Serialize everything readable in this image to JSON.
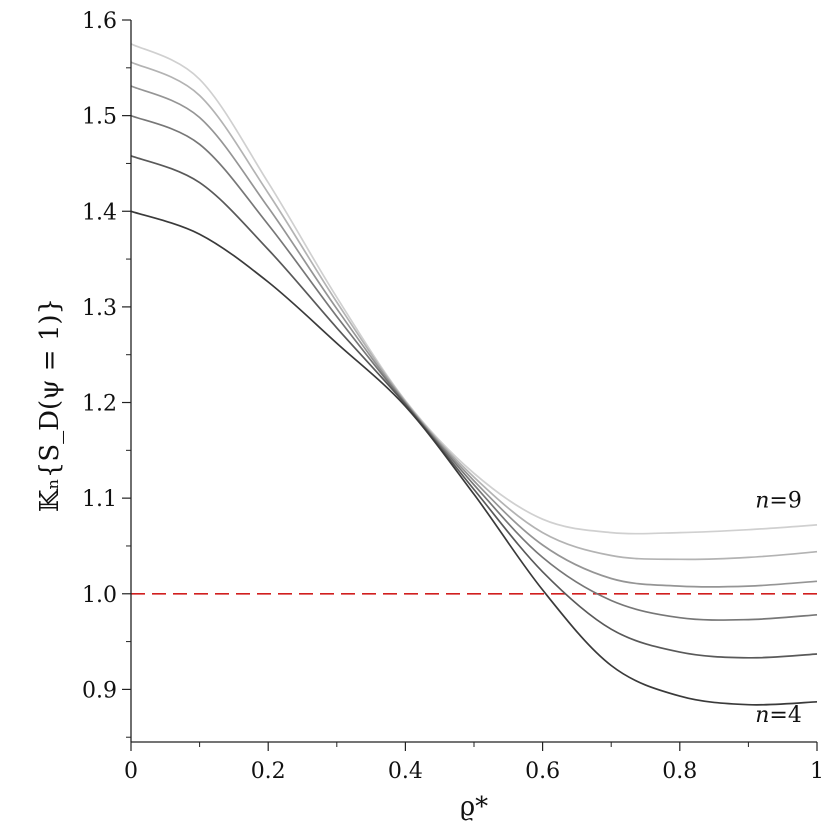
{
  "chart_data": {
    "type": "line",
    "xlabel": "ϱ*",
    "ylabel": "𝕂ₙ{S_D(ψ = 1)}",
    "xlim": [
      0,
      1
    ],
    "ylim": [
      0.845,
      1.6
    ],
    "xticks": [
      "0",
      "0.2",
      "0.4",
      "0.6",
      "0.8",
      "1"
    ],
    "yticks": [
      "0.9",
      "1.0",
      "1.1",
      "1.2",
      "1.3",
      "1.4",
      "1.5",
      "1.6"
    ],
    "grid": false,
    "x": [
      0,
      0.1,
      0.2,
      0.3,
      0.4,
      0.5,
      0.6,
      0.7,
      0.8,
      0.9,
      1.0
    ],
    "series": [
      {
        "color": "#3a3a3a",
        "values": [
          1.4,
          1.376,
          1.326,
          1.262,
          1.196,
          1.104,
          1.004,
          0.925,
          0.893,
          0.884,
          0.887
        ]
      },
      {
        "color": "#595959",
        "values": [
          1.458,
          1.43,
          1.36,
          1.278,
          1.198,
          1.109,
          1.023,
          0.963,
          0.939,
          0.933,
          0.937
        ]
      },
      {
        "color": "#777777",
        "values": [
          1.5,
          1.47,
          1.386,
          1.29,
          1.199,
          1.114,
          1.038,
          0.993,
          0.975,
          0.973,
          0.978
        ]
      },
      {
        "color": "#959595",
        "values": [
          1.531,
          1.498,
          1.404,
          1.298,
          1.2,
          1.118,
          1.051,
          1.016,
          1.008,
          1.008,
          1.013
        ]
      },
      {
        "color": "#b3b3b3",
        "values": [
          1.556,
          1.521,
          1.419,
          1.305,
          1.201,
          1.122,
          1.064,
          1.04,
          1.036,
          1.038,
          1.044
        ]
      },
      {
        "color": "#d0d0d0",
        "values": [
          1.575,
          1.538,
          1.43,
          1.31,
          1.202,
          1.126,
          1.078,
          1.064,
          1.064,
          1.067,
          1.072
        ]
      }
    ],
    "reference_line": {
      "y": 1.0,
      "color": "#d11f1f",
      "style": "dashed"
    },
    "annotations": [
      {
        "var": "n",
        "text": "=9",
        "x": 0.91,
        "y": 1.09
      },
      {
        "var": "n",
        "text": "=4",
        "x": 0.91,
        "y": 0.866
      }
    ]
  }
}
